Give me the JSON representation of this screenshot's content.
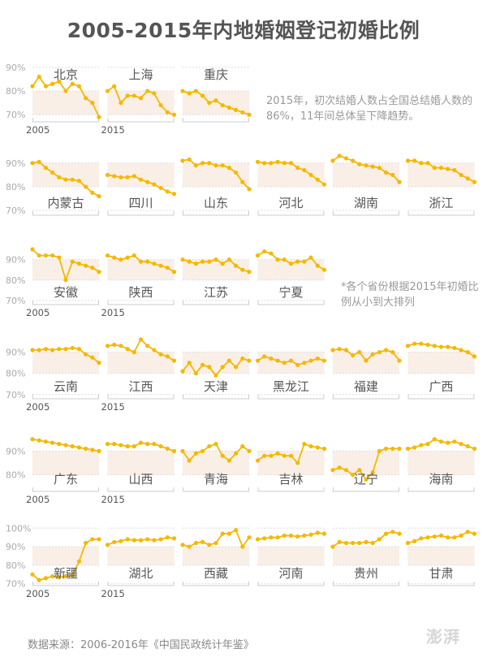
{
  "title": "2005-2015年内地婚姻登记初婚比例",
  "note_summary": "2015年，初次结婚人数占全国总结婚人数的86%，11年间总体呈下降趋势。",
  "note_order": "*各个省份根据2015年初婚比例从小到大排列",
  "source": "数据来源：2006-2016年《中国民政统计年鉴》",
  "watermark": "澎湃",
  "colors": {
    "line": "#f5b800",
    "band": "#f9efe7",
    "grid": "#dcdcdc",
    "label": "#555555",
    "tick": "#aaaaaa"
  },
  "chart_data": {
    "type": "line",
    "x": [
      2005,
      2006,
      2007,
      2008,
      2009,
      2010,
      2011,
      2012,
      2013,
      2014,
      2015
    ],
    "x_tick_labels": [
      "2005",
      "2015"
    ],
    "rows": [
      {
        "ylim": [
          67,
          92
        ],
        "y_ticks": [
          90,
          80,
          70
        ],
        "y_tick_labels": [
          "90%",
          "80%",
          "70%"
        ],
        "band": [
          70,
          80
        ],
        "label_position": "top",
        "panels": [
          {
            "name": "北京",
            "values": [
              82,
              86,
              82,
              83,
              84,
              80,
              83,
              82,
              77,
              75,
              69
            ]
          },
          {
            "name": "上海",
            "values": [
              80,
              82,
              75,
              78,
              78,
              77,
              80,
              79,
              74,
              71,
              70
            ]
          },
          {
            "name": "重庆",
            "values": [
              80,
              79,
              80,
              78,
              75,
              76,
              74,
              73,
              72,
              71,
              70
            ]
          }
        ]
      },
      {
        "ylim": [
          68,
          93
        ],
        "y_ticks": [
          90,
          80,
          70
        ],
        "y_tick_labels": [
          "90%",
          "80%",
          "70%"
        ],
        "band": [
          80,
          90
        ],
        "label_position": "bottom",
        "panels": [
          {
            "name": "内蒙古",
            "values": [
              90,
              90.5,
              88,
              86,
              84,
              83,
              83,
              82.5,
              80,
              77.5,
              76
            ]
          },
          {
            "name": "四川",
            "values": [
              85,
              84.5,
              84,
              84,
              84.5,
              83,
              82,
              81,
              79.5,
              78,
              77
            ]
          },
          {
            "name": "山东",
            "values": [
              91,
              91.5,
              89,
              90,
              90,
              89,
              89,
              88,
              86,
              82,
              79
            ]
          },
          {
            "name": "河北",
            "values": [
              90.5,
              90,
              90,
              90.5,
              90,
              90,
              88,
              87,
              85,
              83,
              81
            ]
          },
          {
            "name": "湖南",
            "values": [
              91,
              93,
              92,
              91,
              89.5,
              89,
              88.5,
              88,
              86,
              85,
              82
            ]
          },
          {
            "name": "浙江",
            "values": [
              91,
              91,
              90,
              90,
              88,
              88,
              87.5,
              87,
              85,
              83.5,
              82
            ]
          }
        ]
      },
      {
        "ylim": [
          68,
          97
        ],
        "y_ticks": [
          90,
          80,
          70
        ],
        "y_tick_labels": [
          "90%",
          "80%",
          "70%"
        ],
        "band": [
          80,
          90
        ],
        "label_position": "bottom",
        "panels": [
          {
            "name": "安徽",
            "values": [
              95,
              92,
              92,
              92,
              91,
              80,
              89,
              88,
              87,
              86,
              84
            ]
          },
          {
            "name": "陕西",
            "values": [
              92,
              91,
              90,
              91,
              92,
              89,
              89,
              88,
              87,
              86,
              84
            ]
          },
          {
            "name": "江苏",
            "values": [
              90,
              89,
              88,
              89,
              89,
              90,
              88,
              90,
              87,
              85,
              84
            ]
          },
          {
            "name": "宁夏",
            "values": [
              92,
              94,
              93,
              90,
              90,
              88,
              89,
              89,
              91,
              87,
              85
            ]
          }
        ]
      },
      {
        "ylim": [
          68,
          96
        ],
        "y_ticks": [
          90,
          80,
          70
        ],
        "y_tick_labels": [
          "90%",
          "80%",
          "70%"
        ],
        "band": [
          80,
          90
        ],
        "label_position": "bottom",
        "panels": [
          {
            "name": "云南",
            "values": [
              91,
              91,
              91.5,
              91,
              91.5,
              91.5,
              92,
              91.5,
              89,
              87.5,
              85
            ]
          },
          {
            "name": "江西",
            "values": [
              93,
              93.5,
              93,
              91.5,
              90,
              96,
              93,
              91,
              89,
              88,
              86
            ]
          },
          {
            "name": "天津",
            "values": [
              81,
              85,
              80,
              84,
              83,
              79,
              83,
              86,
              83,
              87,
              86
            ]
          },
          {
            "name": "黑龙江",
            "values": [
              86,
              88,
              87,
              86,
              85,
              86,
              84,
              85,
              86,
              87,
              86
            ]
          },
          {
            "name": "福建",
            "values": [
              91,
              91.5,
              91,
              88.5,
              90,
              86,
              89,
              90,
              91,
              90,
              86
            ]
          },
          {
            "name": "广西",
            "values": [
              93,
              94,
              94,
              93.5,
              93,
              92.5,
              92.5,
              92,
              91,
              90,
              88
            ]
          }
        ]
      },
      {
        "ylim": [
          73,
          98
        ],
        "y_ticks": [
          90,
          80
        ],
        "y_tick_labels": [
          "90%",
          "80%"
        ],
        "band": [
          80,
          90
        ],
        "label_position": "bottom",
        "panels": [
          {
            "name": "广东",
            "values": [
              95,
              94.5,
              94,
              93.5,
              93,
              92.5,
              92,
              91.5,
              91,
              90.5,
              90
            ]
          },
          {
            "name": "山西",
            "values": [
              93,
              93,
              92.5,
              92,
              92,
              93.5,
              93,
              93,
              92,
              91,
              90
            ]
          },
          {
            "name": "青海",
            "values": [
              90,
              86,
              89,
              90,
              92,
              93,
              88,
              86,
              89,
              92,
              90
            ]
          },
          {
            "name": "吉林",
            "values": [
              86,
              88,
              88,
              89,
              88,
              88,
              85,
              93,
              92,
              91.5,
              91
            ]
          },
          {
            "name": "辽宁",
            "values": [
              82,
              83,
              82,
              80,
              82,
              78,
              81,
              90,
              91,
              91,
              91
            ]
          },
          {
            "name": "海南",
            "values": [
              91,
              91.5,
              92.5,
              93,
              95,
              94,
              93.5,
              94,
              93,
              92,
              91
            ]
          }
        ]
      },
      {
        "ylim": [
          69,
          101
        ],
        "y_ticks": [
          100,
          90,
          80,
          70
        ],
        "y_tick_labels": [
          "100%",
          "90%",
          "80%",
          "70%"
        ],
        "band": [
          80,
          90
        ],
        "label_position": "bottom",
        "panels": [
          {
            "name": "新疆",
            "values": [
              75,
              72,
              73,
              74,
              73.5,
              74,
              74.5,
              82,
              92,
              94,
              94
            ]
          },
          {
            "name": "湖北",
            "values": [
              91,
              92.5,
              93,
              94,
              93.5,
              93.5,
              94,
              93.5,
              94,
              95,
              94.5
            ]
          },
          {
            "name": "西藏",
            "values": [
              91,
              90,
              92,
              92.5,
              91,
              92,
              97,
              97,
              99,
              90,
              95
            ]
          },
          {
            "name": "河南",
            "values": [
              94,
              94.5,
              95,
              95,
              96,
              96,
              95.5,
              96,
              96.5,
              97.5,
              97
            ]
          },
          {
            "name": "贵州",
            "values": [
              90,
              92.5,
              92,
              92,
              92,
              92.5,
              92,
              94,
              97,
              98,
              97
            ]
          },
          {
            "name": "甘肃",
            "values": [
              92,
              93,
              94.5,
              95,
              95.5,
              96,
              95,
              95,
              96,
              98,
              97
            ]
          }
        ]
      }
    ]
  }
}
